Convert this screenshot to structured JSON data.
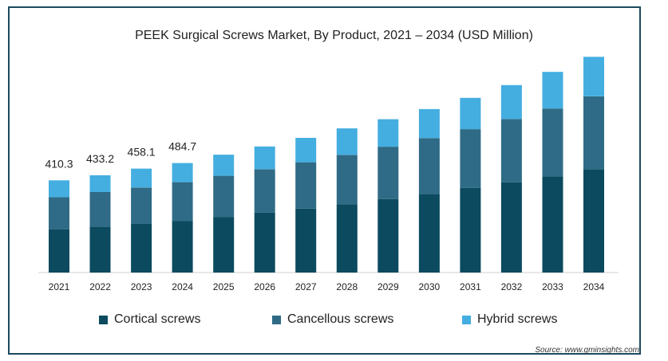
{
  "chart_data": {
    "type": "bar",
    "stacked": true,
    "title": "PEEK Surgical Screws Market, By Product, 2021 – 2034 (USD Million)",
    "categories": [
      "2021",
      "2022",
      "2023",
      "2024",
      "2025",
      "2026",
      "2027",
      "2028",
      "2029",
      "2030",
      "2031",
      "2032",
      "2033",
      "2034"
    ],
    "series": [
      {
        "name": "Cortical screws",
        "color": "#0b4a5f",
        "values": [
          171,
          181,
          191,
          203,
          218,
          235,
          251,
          268,
          288,
          309,
          332,
          354,
          378,
          405
        ]
      },
      {
        "name": "Cancellous screws",
        "color": "#2f6b86",
        "values": [
          125,
          135,
          143,
          152,
          162,
          171,
          182,
          194,
          206,
          219,
          231,
          249,
          266,
          287
        ]
      },
      {
        "name": "Hybrid screws",
        "color": "#44aee0",
        "values": [
          66,
          66,
          74,
          75,
          83,
          89,
          96,
          104,
          108,
          114,
          123,
          133,
          144,
          155
        ]
      }
    ],
    "data_labels": [
      "410.3",
      "433.2",
      "458.1",
      "484.7"
    ],
    "ylim": [
      0,
      870
    ],
    "grid": false,
    "legend_position": "bottom"
  },
  "source": "Source: www.gminsights.com"
}
